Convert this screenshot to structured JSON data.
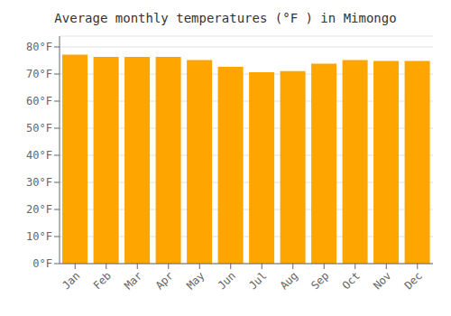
{
  "chart_data": {
    "type": "bar",
    "title": "Average monthly temperatures (°F ) in Mimongo",
    "categories": [
      "Jan",
      "Feb",
      "Mar",
      "Apr",
      "May",
      "Jun",
      "Jul",
      "Aug",
      "Sep",
      "Oct",
      "Nov",
      "Dec"
    ],
    "values": [
      77.2,
      76.3,
      76.3,
      76.3,
      75.2,
      72.7,
      70.7,
      71.1,
      73.8,
      75.2,
      74.8,
      74.8
    ],
    "color": "#FFA500",
    "ylim": [
      0,
      84
    ],
    "yticks": [
      {
        "value": 0,
        "label": "0°F"
      },
      {
        "value": 10,
        "label": "10°F"
      },
      {
        "value": 20,
        "label": "20°F"
      },
      {
        "value": 30,
        "label": "30°F"
      },
      {
        "value": 40,
        "label": "40°F"
      },
      {
        "value": 50,
        "label": "50°F"
      },
      {
        "value": 60,
        "label": "60°F"
      },
      {
        "value": 70,
        "label": "70°F"
      },
      {
        "value": 80,
        "label": "80°F"
      }
    ],
    "grid": true
  }
}
